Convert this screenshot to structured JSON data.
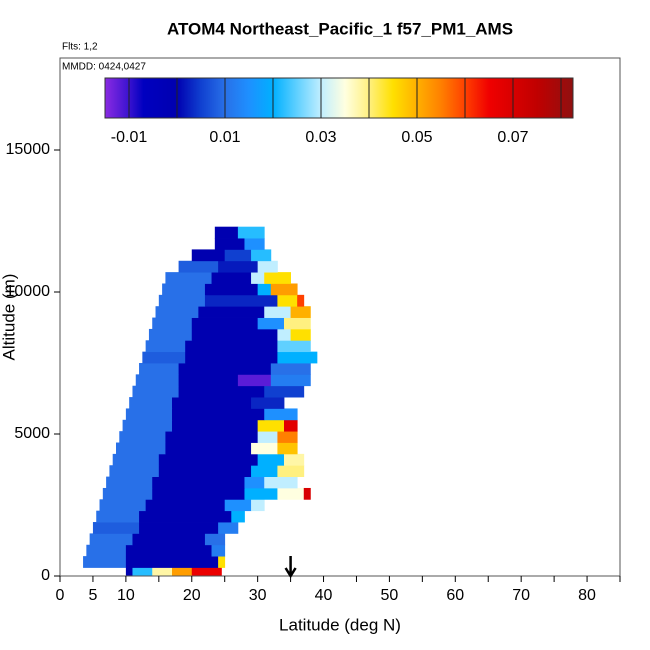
{
  "chart_data": {
    "type": "curtain",
    "title": "ATOM4 Northeast_Pacific_1 f57_PM1_AMS",
    "subtitle": "Flts: 1,2",
    "annotation": "MMDD: 0424,0427",
    "xlabel": "Latitude (deg N)",
    "ylabel": "Altitude (m)",
    "xlim": [
      0,
      85
    ],
    "xticks": [
      0,
      5,
      10,
      20,
      30,
      40,
      50,
      60,
      70,
      80
    ],
    "xminor_ticks": [
      15,
      25,
      35,
      45,
      55,
      65,
      75,
      85
    ],
    "ylim": [
      0,
      18240
    ],
    "yticks": [
      0,
      5000,
      10000,
      15000
    ],
    "clim": [
      -0.015,
      0.0825
    ],
    "cticks": [
      -0.01,
      0.01,
      0.03,
      0.05,
      0.07
    ],
    "cminor_ticks": [
      0,
      0.02,
      0.04,
      0.06,
      0.08
    ],
    "colorscale": [
      {
        "value": -0.015,
        "color": "#8a2be2"
      },
      {
        "value": -0.01,
        "color": "#3a12d0"
      },
      {
        "value": -0.007,
        "color": "#0000c0"
      },
      {
        "value": 0,
        "color": "#0000b0"
      },
      {
        "value": 0.005,
        "color": "#1040d0"
      },
      {
        "value": 0.01,
        "color": "#2870e8"
      },
      {
        "value": 0.015,
        "color": "#1e90ff"
      },
      {
        "value": 0.02,
        "color": "#00b0ff"
      },
      {
        "value": 0.025,
        "color": "#60d0ff"
      },
      {
        "value": 0.03,
        "color": "#c0eeff"
      },
      {
        "value": 0.035,
        "color": "#ffffe0"
      },
      {
        "value": 0.04,
        "color": "#fff080"
      },
      {
        "value": 0.045,
        "color": "#ffe000"
      },
      {
        "value": 0.05,
        "color": "#ffb000"
      },
      {
        "value": 0.055,
        "color": "#ff8000"
      },
      {
        "value": 0.06,
        "color": "#ff4000"
      },
      {
        "value": 0.065,
        "color": "#f00000"
      },
      {
        "value": 0.075,
        "color": "#c00000"
      },
      {
        "value": 0.0825,
        "color": "#901010"
      }
    ],
    "arrow_lat": 35,
    "cells": [
      {
        "lat": [
          10,
          11
        ],
        "alt": [
          0,
          300
        ],
        "value": 0
      },
      {
        "lat": [
          11,
          14
        ],
        "alt": [
          0,
          300
        ],
        "value": 0.022
      },
      {
        "lat": [
          14,
          17
        ],
        "alt": [
          0,
          300
        ],
        "value": 0.038
      },
      {
        "lat": [
          17,
          20
        ],
        "alt": [
          0,
          300
        ],
        "value": 0.052
      },
      {
        "lat": [
          20,
          24.5
        ],
        "alt": [
          0,
          300
        ],
        "value": 0.066
      },
      {
        "lat": [
          3.5,
          10
        ],
        "alt": [
          300,
          700
        ],
        "value": 0.01
      },
      {
        "lat": [
          10,
          24
        ],
        "alt": [
          300,
          700
        ],
        "value": 0
      },
      {
        "lat": [
          24,
          25
        ],
        "alt": [
          300,
          700
        ],
        "value": 0.045
      },
      {
        "lat": [
          4,
          10
        ],
        "alt": [
          700,
          1100
        ],
        "value": 0.01
      },
      {
        "lat": [
          10,
          23
        ],
        "alt": [
          700,
          1100
        ],
        "value": 0
      },
      {
        "lat": [
          23,
          25
        ],
        "alt": [
          700,
          1100
        ],
        "value": 0.012
      },
      {
        "lat": [
          4.5,
          11
        ],
        "alt": [
          1100,
          1500
        ],
        "value": 0.01
      },
      {
        "lat": [
          11,
          22
        ],
        "alt": [
          1100,
          1500
        ],
        "value": 0
      },
      {
        "lat": [
          22,
          25
        ],
        "alt": [
          1100,
          1500
        ],
        "value": 0.01
      },
      {
        "lat": [
          5,
          12
        ],
        "alt": [
          1500,
          1900
        ],
        "value": 0.008
      },
      {
        "lat": [
          12,
          24
        ],
        "alt": [
          1500,
          1900
        ],
        "value": 0
      },
      {
        "lat": [
          24,
          27
        ],
        "alt": [
          1500,
          1900
        ],
        "value": 0.012
      },
      {
        "lat": [
          5.5,
          12
        ],
        "alt": [
          1900,
          2300
        ],
        "value": 0.01
      },
      {
        "lat": [
          12,
          26
        ],
        "alt": [
          1900,
          2300
        ],
        "value": 0
      },
      {
        "lat": [
          26,
          28
        ],
        "alt": [
          1900,
          2300
        ],
        "value": 0.02
      },
      {
        "lat": [
          6,
          13
        ],
        "alt": [
          2300,
          2700
        ],
        "value": 0.01
      },
      {
        "lat": [
          13,
          25
        ],
        "alt": [
          2300,
          2700
        ],
        "value": 0
      },
      {
        "lat": [
          25,
          29
        ],
        "alt": [
          2300,
          2700
        ],
        "value": 0.015
      },
      {
        "lat": [
          29,
          31
        ],
        "alt": [
          2300,
          2700
        ],
        "value": 0.03
      },
      {
        "lat": [
          6.5,
          14
        ],
        "alt": [
          2700,
          3100
        ],
        "value": 0.01
      },
      {
        "lat": [
          14,
          28
        ],
        "alt": [
          2700,
          3100
        ],
        "value": 0
      },
      {
        "lat": [
          28,
          33
        ],
        "alt": [
          2700,
          3100
        ],
        "value": 0.02
      },
      {
        "lat": [
          33,
          37
        ],
        "alt": [
          2700,
          3100
        ],
        "value": 0.035
      },
      {
        "lat": [
          37,
          38
        ],
        "alt": [
          2700,
          3100
        ],
        "value": 0.07
      },
      {
        "lat": [
          7,
          14
        ],
        "alt": [
          3100,
          3500
        ],
        "value": 0.01
      },
      {
        "lat": [
          14,
          28
        ],
        "alt": [
          3100,
          3500
        ],
        "value": 0
      },
      {
        "lat": [
          28,
          31
        ],
        "alt": [
          3100,
          3500
        ],
        "value": 0.015
      },
      {
        "lat": [
          31,
          36
        ],
        "alt": [
          3100,
          3500
        ],
        "value": 0.03
      },
      {
        "lat": [
          7.5,
          15
        ],
        "alt": [
          3500,
          3900
        ],
        "value": 0.01
      },
      {
        "lat": [
          15,
          29
        ],
        "alt": [
          3500,
          3900
        ],
        "value": 0
      },
      {
        "lat": [
          29,
          33
        ],
        "alt": [
          3500,
          3900
        ],
        "value": 0.02
      },
      {
        "lat": [
          33,
          37
        ],
        "alt": [
          3500,
          3900
        ],
        "value": 0.04
      },
      {
        "lat": [
          8,
          15
        ],
        "alt": [
          3900,
          4300
        ],
        "value": 0.01
      },
      {
        "lat": [
          15,
          30
        ],
        "alt": [
          3900,
          4300
        ],
        "value": 0
      },
      {
        "lat": [
          30,
          34
        ],
        "alt": [
          3900,
          4300
        ],
        "value": 0.02
      },
      {
        "lat": [
          34,
          37
        ],
        "alt": [
          3900,
          4300
        ],
        "value": 0.038
      },
      {
        "lat": [
          8.5,
          16
        ],
        "alt": [
          4300,
          4700
        ],
        "value": 0.01
      },
      {
        "lat": [
          16,
          29
        ],
        "alt": [
          4300,
          4700
        ],
        "value": 0
      },
      {
        "lat": [
          29,
          33
        ],
        "alt": [
          4300,
          4700
        ],
        "value": 0.035
      },
      {
        "lat": [
          33,
          36
        ],
        "alt": [
          4300,
          4700
        ],
        "value": 0.048
      },
      {
        "lat": [
          9,
          16
        ],
        "alt": [
          4700,
          5100
        ],
        "value": 0.01
      },
      {
        "lat": [
          16,
          30
        ],
        "alt": [
          4700,
          5100
        ],
        "value": 0
      },
      {
        "lat": [
          30,
          33
        ],
        "alt": [
          4700,
          5100
        ],
        "value": 0.03
      },
      {
        "lat": [
          33,
          36
        ],
        "alt": [
          4700,
          5100
        ],
        "value": 0.055
      },
      {
        "lat": [
          9.5,
          17
        ],
        "alt": [
          5100,
          5500
        ],
        "value": 0.01
      },
      {
        "lat": [
          17,
          30
        ],
        "alt": [
          5100,
          5500
        ],
        "value": 0
      },
      {
        "lat": [
          30,
          34
        ],
        "alt": [
          5100,
          5500
        ],
        "value": 0.045
      },
      {
        "lat": [
          34,
          36
        ],
        "alt": [
          5100,
          5500
        ],
        "value": 0.068
      },
      {
        "lat": [
          10,
          17
        ],
        "alt": [
          5500,
          5900
        ],
        "value": 0.01
      },
      {
        "lat": [
          17,
          31
        ],
        "alt": [
          5500,
          5900
        ],
        "value": 0
      },
      {
        "lat": [
          31,
          36
        ],
        "alt": [
          5500,
          5900
        ],
        "value": 0.015
      },
      {
        "lat": [
          10.5,
          17
        ],
        "alt": [
          5900,
          6300
        ],
        "value": 0.01
      },
      {
        "lat": [
          17,
          29
        ],
        "alt": [
          5900,
          6300
        ],
        "value": 0
      },
      {
        "lat": [
          29,
          34
        ],
        "alt": [
          5900,
          6300
        ],
        "value": 0.003
      },
      {
        "lat": [
          11,
          18
        ],
        "alt": [
          6300,
          6700
        ],
        "value": 0.01
      },
      {
        "lat": [
          18,
          31
        ],
        "alt": [
          6300,
          6700
        ],
        "value": 0
      },
      {
        "lat": [
          31,
          37
        ],
        "alt": [
          6300,
          6700
        ],
        "value": 0.005
      },
      {
        "lat": [
          11.5,
          18
        ],
        "alt": [
          6700,
          7100
        ],
        "value": 0.01
      },
      {
        "lat": [
          18,
          27
        ],
        "alt": [
          6700,
          7100
        ],
        "value": 0
      },
      {
        "lat": [
          27,
          32
        ],
        "alt": [
          6700,
          7100
        ],
        "value": -0.012
      },
      {
        "lat": [
          32,
          38
        ],
        "alt": [
          6700,
          7100
        ],
        "value": 0.012
      },
      {
        "lat": [
          12,
          18
        ],
        "alt": [
          7100,
          7500
        ],
        "value": 0.01
      },
      {
        "lat": [
          18,
          32
        ],
        "alt": [
          7100,
          7500
        ],
        "value": 0
      },
      {
        "lat": [
          32,
          38
        ],
        "alt": [
          7100,
          7500
        ],
        "value": 0.01
      },
      {
        "lat": [
          12.5,
          19
        ],
        "alt": [
          7500,
          7900
        ],
        "value": 0.008
      },
      {
        "lat": [
          19,
          33
        ],
        "alt": [
          7500,
          7900
        ],
        "value": 0
      },
      {
        "lat": [
          33,
          39
        ],
        "alt": [
          7500,
          7900
        ],
        "value": 0.02
      },
      {
        "lat": [
          13,
          19
        ],
        "alt": [
          7900,
          8300
        ],
        "value": 0.01
      },
      {
        "lat": [
          19,
          33
        ],
        "alt": [
          7900,
          8300
        ],
        "value": 0
      },
      {
        "lat": [
          33,
          38
        ],
        "alt": [
          7900,
          8300
        ],
        "value": 0.025
      },
      {
        "lat": [
          13.5,
          20
        ],
        "alt": [
          8300,
          8700
        ],
        "value": 0.01
      },
      {
        "lat": [
          20,
          33
        ],
        "alt": [
          8300,
          8700
        ],
        "value": 0
      },
      {
        "lat": [
          33,
          35
        ],
        "alt": [
          8300,
          8700
        ],
        "value": 0.03
      },
      {
        "lat": [
          35,
          38
        ],
        "alt": [
          8300,
          8700
        ],
        "value": 0.045
      },
      {
        "lat": [
          14,
          20
        ],
        "alt": [
          8700,
          9100
        ],
        "value": 0.01
      },
      {
        "lat": [
          20,
          30
        ],
        "alt": [
          8700,
          9100
        ],
        "value": 0
      },
      {
        "lat": [
          30,
          34
        ],
        "alt": [
          8700,
          9100
        ],
        "value": 0.015
      },
      {
        "lat": [
          34,
          38
        ],
        "alt": [
          8700,
          9100
        ],
        "value": 0.04
      },
      {
        "lat": [
          14.5,
          21
        ],
        "alt": [
          9100,
          9500
        ],
        "value": 0.01
      },
      {
        "lat": [
          21,
          31
        ],
        "alt": [
          9100,
          9500
        ],
        "value": 0
      },
      {
        "lat": [
          31,
          35
        ],
        "alt": [
          9100,
          9500
        ],
        "value": 0.03
      },
      {
        "lat": [
          35,
          38
        ],
        "alt": [
          9100,
          9500
        ],
        "value": 0.05
      },
      {
        "lat": [
          15,
          22
        ],
        "alt": [
          9500,
          9900
        ],
        "value": 0.01
      },
      {
        "lat": [
          22,
          33
        ],
        "alt": [
          9500,
          9900
        ],
        "value": 0.003
      },
      {
        "lat": [
          33,
          36
        ],
        "alt": [
          9500,
          9900
        ],
        "value": 0.045
      },
      {
        "lat": [
          36,
          37
        ],
        "alt": [
          9500,
          9900
        ],
        "value": 0.06
      },
      {
        "lat": [
          15.5,
          22
        ],
        "alt": [
          9900,
          10300
        ],
        "value": 0.01
      },
      {
        "lat": [
          22,
          30
        ],
        "alt": [
          9900,
          10300
        ],
        "value": 0
      },
      {
        "lat": [
          30,
          32
        ],
        "alt": [
          9900,
          10300
        ],
        "value": 0.02
      },
      {
        "lat": [
          32,
          36
        ],
        "alt": [
          9900,
          10300
        ],
        "value": 0.052
      },
      {
        "lat": [
          16,
          23
        ],
        "alt": [
          10300,
          10700
        ],
        "value": 0.01
      },
      {
        "lat": [
          23,
          29
        ],
        "alt": [
          10300,
          10700
        ],
        "value": 0
      },
      {
        "lat": [
          29,
          31
        ],
        "alt": [
          10300,
          10700
        ],
        "value": 0.03
      },
      {
        "lat": [
          31,
          35
        ],
        "alt": [
          10300,
          10700
        ],
        "value": 0.045
      },
      {
        "lat": [
          18,
          24
        ],
        "alt": [
          10700,
          11100
        ],
        "value": 0.008
      },
      {
        "lat": [
          24,
          30
        ],
        "alt": [
          10700,
          11100
        ],
        "value": 0.002
      },
      {
        "lat": [
          30,
          33
        ],
        "alt": [
          10700,
          11100
        ],
        "value": 0.03
      },
      {
        "lat": [
          20,
          25
        ],
        "alt": [
          11100,
          11500
        ],
        "value": 0
      },
      {
        "lat": [
          25,
          29
        ],
        "alt": [
          11100,
          11500
        ],
        "value": 0.005
      },
      {
        "lat": [
          29,
          32
        ],
        "alt": [
          11100,
          11500
        ],
        "value": 0.022
      },
      {
        "lat": [
          23.5,
          28
        ],
        "alt": [
          11500,
          11900
        ],
        "value": 0
      },
      {
        "lat": [
          28,
          31
        ],
        "alt": [
          11500,
          11900
        ],
        "value": 0.015
      },
      {
        "lat": [
          23.5,
          27
        ],
        "alt": [
          11900,
          12300
        ],
        "value": 0
      },
      {
        "lat": [
          27,
          31
        ],
        "alt": [
          11900,
          12300
        ],
        "value": 0.022
      }
    ]
  }
}
